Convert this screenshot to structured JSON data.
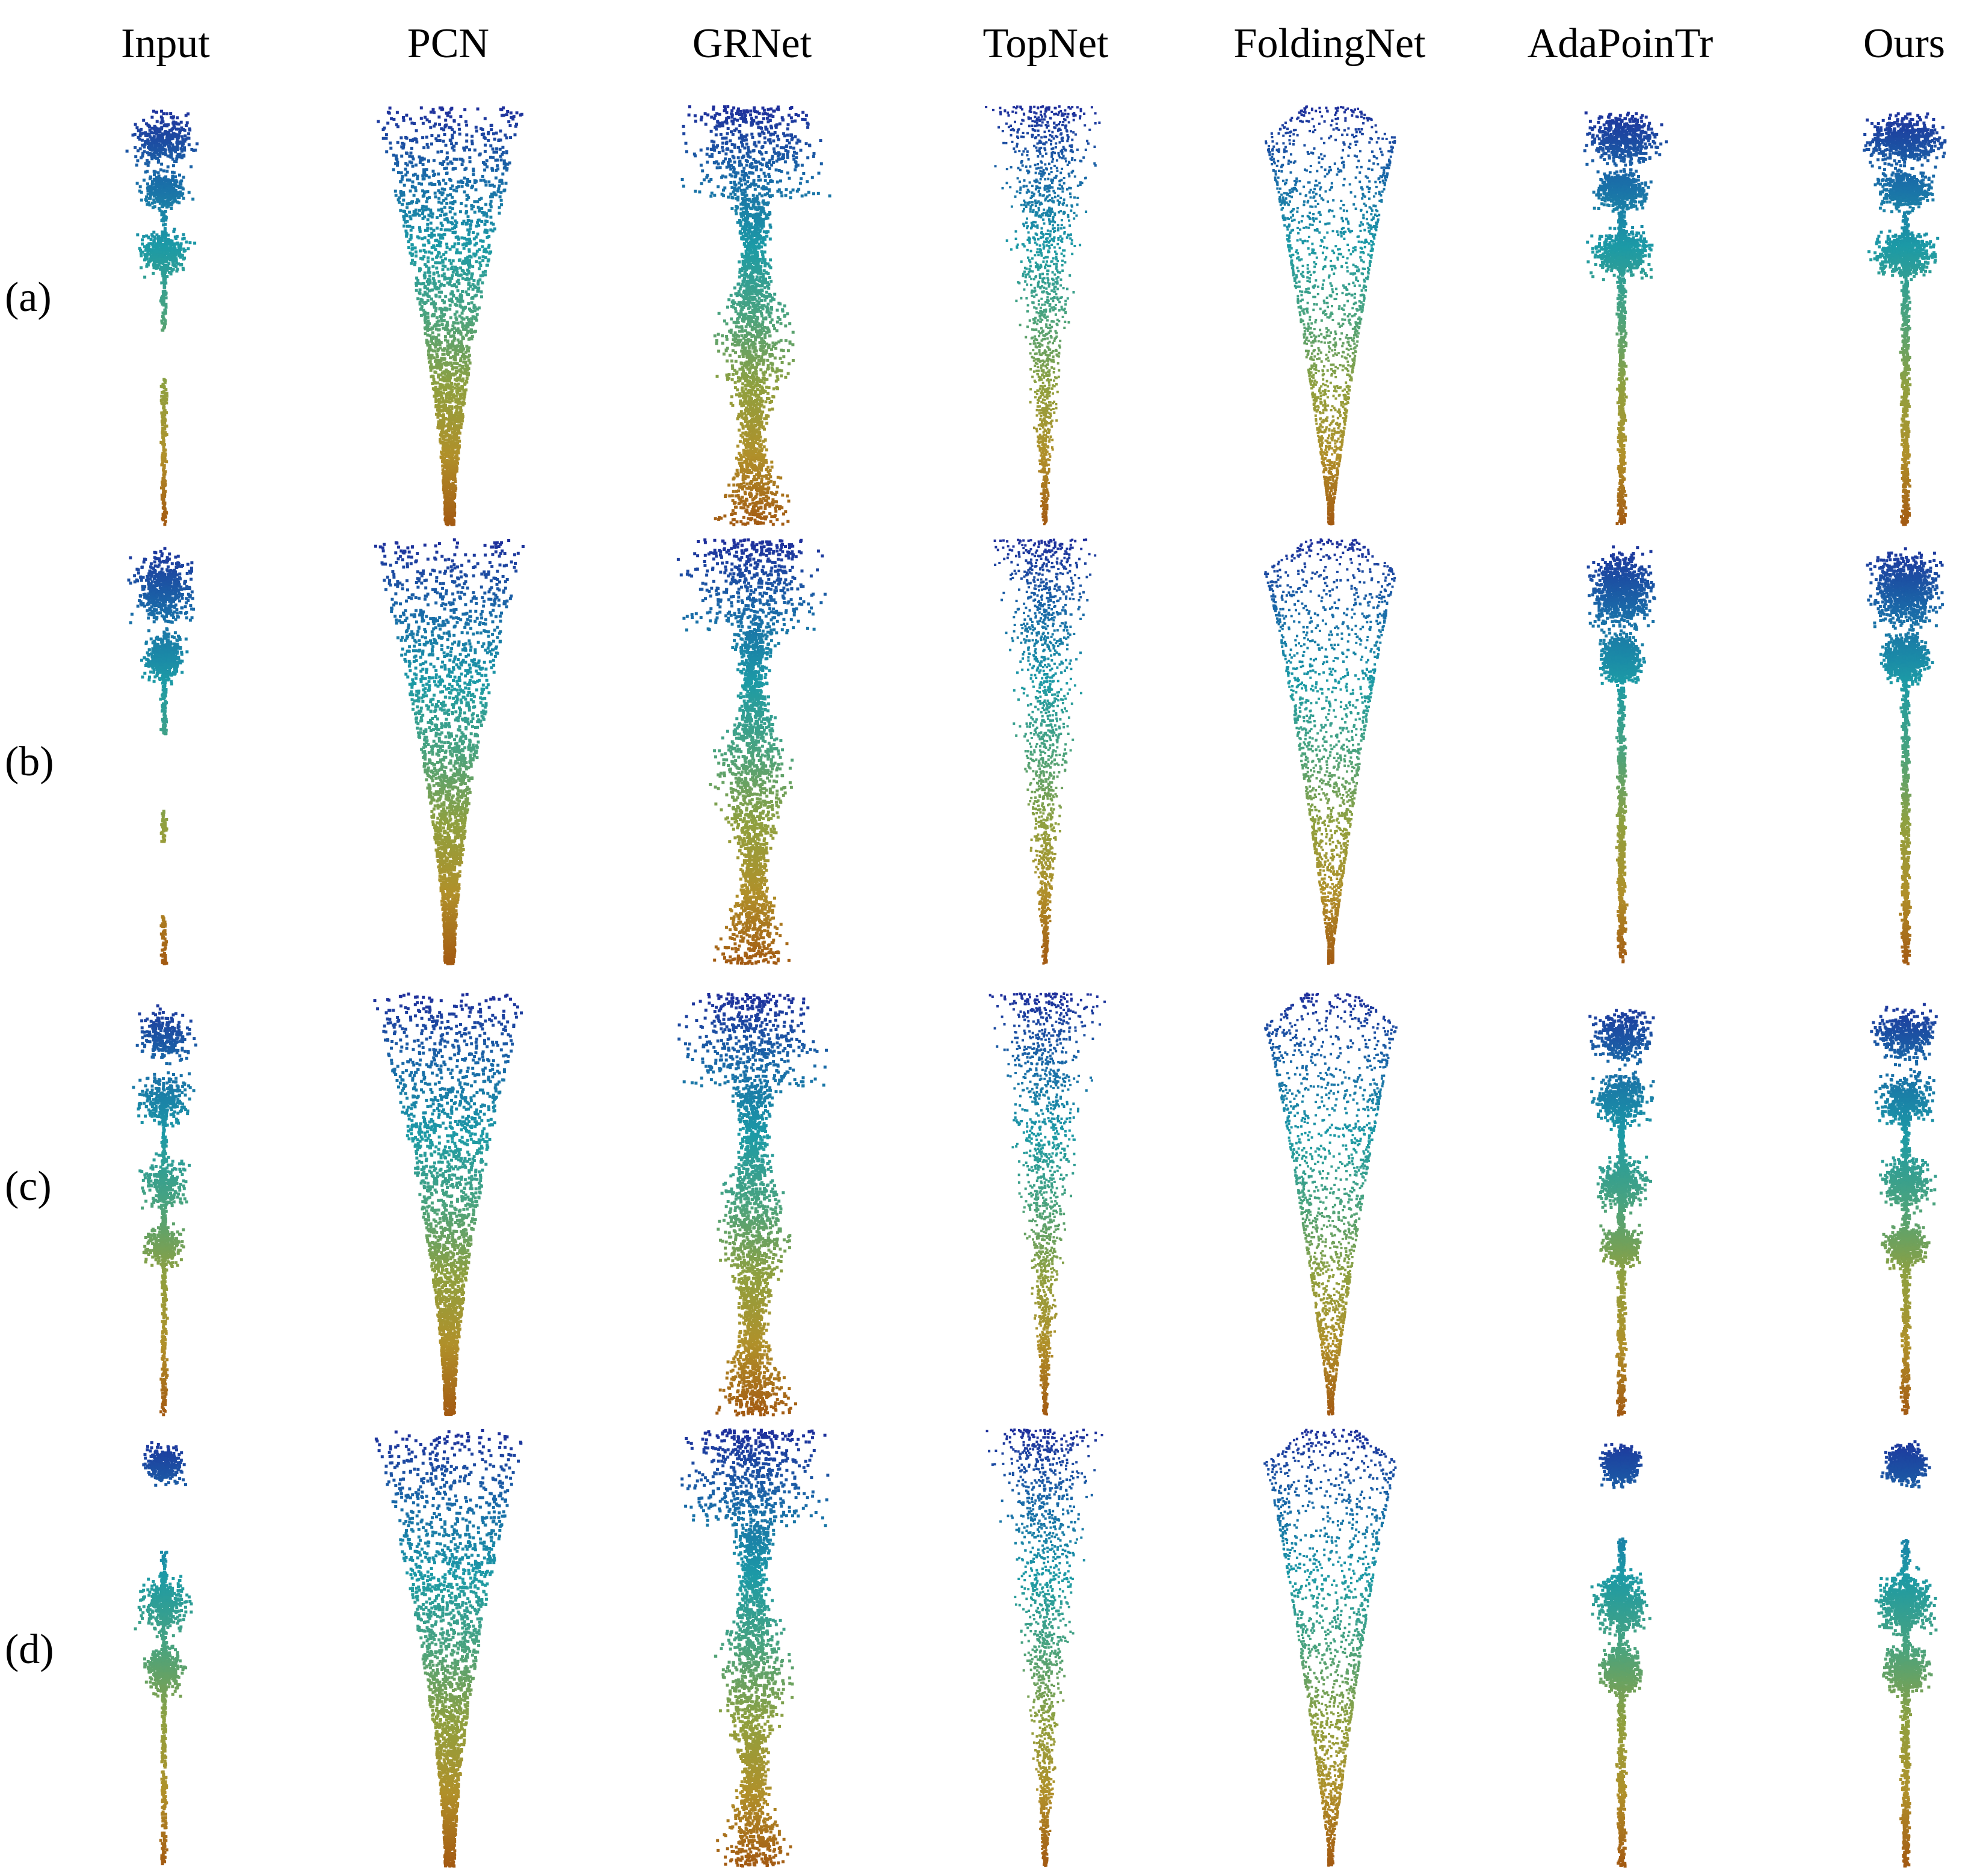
{
  "figure": {
    "columns": [
      "Input",
      "PCN",
      "GRNet",
      "TopNet",
      "FoldingNet",
      "AdaPoinTr",
      "Ours"
    ],
    "rows": [
      "(a)",
      "(b)",
      "(c)",
      "(d)"
    ],
    "colormap": [
      "#1f2f9c",
      "#1a6aa8",
      "#1c9aa6",
      "#4aa37e",
      "#8fa03f",
      "#b0902a",
      "#a35a12"
    ],
    "background": "#ffffff"
  }
}
